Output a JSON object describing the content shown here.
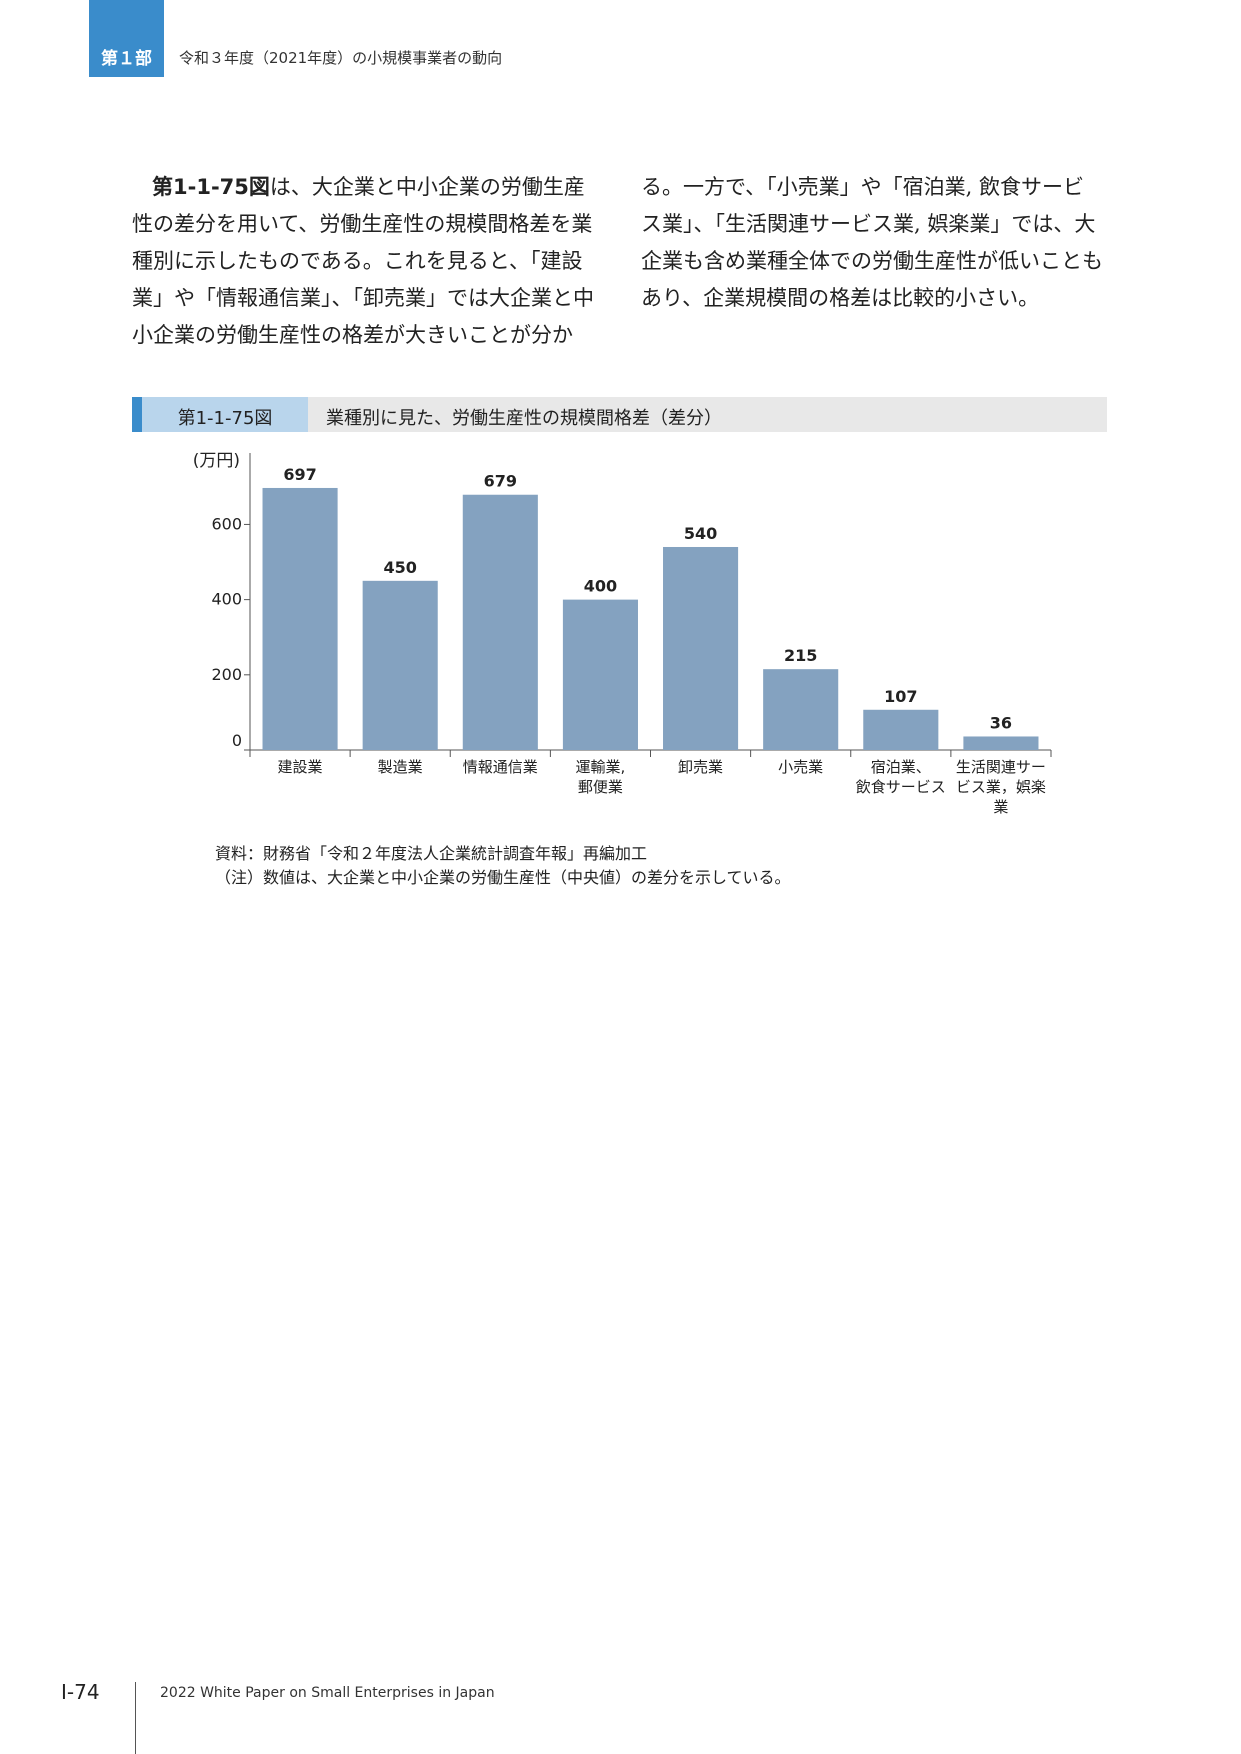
{
  "header": {
    "part": "第１部",
    "title": "令和３年度（2021年度）の小規模事業者の動向"
  },
  "body": {
    "figure_ref": "第1-1-75図",
    "left_lines": [
      "は、大企業と中小企業の労働生産",
      "性の差分を用いて、労働生産性の規模間格差を業",
      "種別に示したものである。これを見ると、「建設",
      "業」や「情報通信業」、「卸売業」では大企業と中",
      "小企業の労働生産性の格差が大きいことが分か"
    ],
    "right_lines": [
      "る。一方で、「小売業」や「宿泊業, 飲食サービ",
      "ス業」、「生活関連サービス業, 娯楽業」では、大",
      "企業も含め業種全体での労働生産性が低いことも",
      "あり、企業規模間の格差は比較的小さい。"
    ]
  },
  "figure": {
    "number": "第1-1-75図",
    "title": "業種別に見た、労働生産性の規模間格差（差分）"
  },
  "chart_data": {
    "type": "bar",
    "y_label": "(万円)",
    "categories": [
      "建設業",
      "製造業",
      "情報通信業",
      "運輸業,\n郵便業",
      "卸売業",
      "小売業",
      "宿泊業、\n飲食サービス",
      "生活関連サー\nビス業，娯楽\n業"
    ],
    "values": [
      697,
      450,
      679,
      400,
      540,
      215,
      107,
      36
    ],
    "color": "#84a2c0",
    "ylim": [
      0,
      790
    ],
    "yticks": [
      0,
      200,
      400,
      600
    ],
    "grid": false
  },
  "notes": [
    "資料：財務省「令和２年度法人企業統計調査年報」再編加工",
    "（注）数値は、大企業と中小企業の労働生産性（中央値）の差分を示している。"
  ],
  "footer": {
    "page": "I-74",
    "title": "2022 White Paper on Small Enterprises in Japan"
  }
}
